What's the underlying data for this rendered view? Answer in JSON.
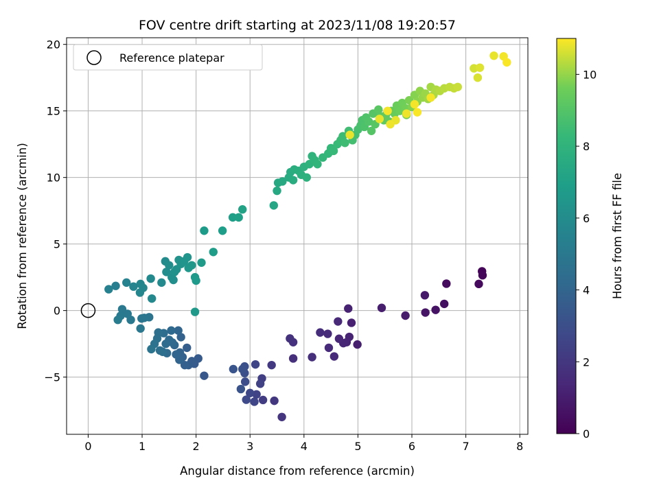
{
  "chart_data": {
    "type": "scatter",
    "title": "FOV centre drift starting at 2023/11/08 19:20:57",
    "xlabel": "Angular distance from reference (arcmin)",
    "ylabel": "Rotation from reference (arcmin)",
    "xlim": [
      -0.4,
      8.15
    ],
    "ylim": [
      -9.3,
      20.5
    ],
    "xticks": [
      "0",
      "1",
      "2",
      "3",
      "4",
      "5",
      "6",
      "7",
      "8"
    ],
    "yticks": [
      "−5",
      "0",
      "5",
      "10",
      "15",
      "20"
    ],
    "grid": true,
    "legend": {
      "position": "top-left",
      "entries": [
        "Reference platepar"
      ]
    },
    "reference_point": {
      "x": 0,
      "y": 0
    },
    "colorbar": {
      "label": "Hours from first FF file",
      "range": [
        0,
        11
      ],
      "colormap": "viridis",
      "ticks": [
        "0",
        "2",
        "4",
        "6",
        "8",
        "10"
      ]
    },
    "points": [
      [
        7.3,
        2.95,
        0.1
      ],
      [
        7.31,
        2.65,
        0.2
      ],
      [
        7.24,
        2.0,
        0.3
      ],
      [
        6.64,
        2.02,
        0.4
      ],
      [
        6.6,
        0.5,
        0.5
      ],
      [
        6.44,
        0.05,
        0.6
      ],
      [
        6.25,
        -0.15,
        0.7
      ],
      [
        6.24,
        1.15,
        0.8
      ],
      [
        5.88,
        -0.38,
        0.9
      ],
      [
        5.44,
        0.2,
        1.0
      ],
      [
        4.99,
        -2.55,
        1.05
      ],
      [
        4.88,
        -0.92,
        1.1
      ],
      [
        4.82,
        0.15,
        1.15
      ],
      [
        4.84,
        -1.98,
        1.2
      ],
      [
        4.79,
        -2.38,
        1.25
      ],
      [
        4.73,
        -2.45,
        1.3
      ],
      [
        4.65,
        -2.12,
        1.35
      ],
      [
        4.63,
        -0.82,
        1.4
      ],
      [
        4.56,
        -3.45,
        1.45
      ],
      [
        4.46,
        -2.8,
        1.5
      ],
      [
        4.44,
        -1.75,
        1.55
      ],
      [
        4.3,
        -1.65,
        1.6
      ],
      [
        4.15,
        -3.5,
        1.65
      ],
      [
        3.8,
        -3.6,
        1.7
      ],
      [
        3.8,
        -2.38,
        1.75
      ],
      [
        3.74,
        -2.1,
        1.8
      ],
      [
        3.59,
        -8.0,
        1.9
      ],
      [
        3.45,
        -6.78,
        2.0
      ],
      [
        3.4,
        -4.1,
        2.1
      ],
      [
        3.24,
        -6.72,
        2.2
      ],
      [
        3.22,
        -5.1,
        2.3
      ],
      [
        3.19,
        -5.5,
        2.4
      ],
      [
        3.12,
        -6.3,
        2.5
      ],
      [
        3.1,
        -4.05,
        2.55
      ],
      [
        3.08,
        -6.85,
        2.6
      ],
      [
        3.0,
        -6.2,
        2.7
      ],
      [
        2.93,
        -6.7,
        2.8
      ],
      [
        2.91,
        -5.35,
        2.9
      ],
      [
        2.9,
        -4.7,
        3.0
      ],
      [
        2.9,
        -4.2,
        3.05
      ],
      [
        2.86,
        -4.4,
        3.1
      ],
      [
        2.83,
        -5.9,
        3.2
      ],
      [
        2.69,
        -4.4,
        3.3
      ],
      [
        2.15,
        -4.9,
        3.4
      ],
      [
        2.04,
        -3.6,
        3.5
      ],
      [
        1.97,
        -4.0,
        3.55
      ],
      [
        1.92,
        -3.8,
        3.6
      ],
      [
        1.86,
        -4.1,
        3.65
      ],
      [
        1.83,
        -2.8,
        3.7
      ],
      [
        1.79,
        -4.1,
        3.75
      ],
      [
        1.75,
        -3.5,
        3.8
      ],
      [
        1.72,
        -2.0,
        3.85
      ],
      [
        1.7,
        -3.15,
        3.9
      ],
      [
        1.69,
        -3.7,
        3.95
      ],
      [
        1.67,
        -1.5,
        4.0
      ],
      [
        1.63,
        -3.3,
        4.05
      ],
      [
        1.6,
        -2.6,
        4.1
      ],
      [
        1.56,
        -2.4,
        4.15
      ],
      [
        1.54,
        -1.5,
        4.2
      ],
      [
        1.5,
        -2.2,
        4.25
      ],
      [
        1.46,
        -3.2,
        4.3
      ],
      [
        1.44,
        -2.5,
        4.35
      ],
      [
        1.4,
        -1.7,
        4.4
      ],
      [
        1.38,
        -3.1,
        4.45
      ],
      [
        1.33,
        -3.0,
        4.5
      ],
      [
        1.3,
        -1.65,
        4.55
      ],
      [
        1.28,
        -2.1,
        4.6
      ],
      [
        1.23,
        -2.5,
        4.65
      ],
      [
        1.17,
        -2.9,
        4.7
      ],
      [
        1.13,
        -0.5,
        4.75
      ],
      [
        1.04,
        -0.55,
        4.8
      ],
      [
        0.99,
        -0.6,
        4.85
      ],
      [
        0.97,
        -1.35,
        4.9
      ],
      [
        0.79,
        -0.7,
        4.95
      ],
      [
        0.73,
        -0.25,
        5.0
      ],
      [
        0.63,
        0.1,
        5.05
      ],
      [
        0.6,
        -0.4,
        5.1
      ],
      [
        0.55,
        -0.7,
        5.15
      ],
      [
        0.51,
        1.85,
        5.3
      ],
      [
        0.38,
        1.6,
        5.4
      ],
      [
        0.71,
        2.1,
        5.5
      ],
      [
        0.84,
        1.8,
        5.6
      ],
      [
        0.97,
        2.0,
        5.65
      ],
      [
        0.96,
        1.35,
        5.7
      ],
      [
        1.02,
        1.7,
        5.75
      ],
      [
        1.18,
        0.9,
        5.8
      ],
      [
        1.16,
        2.4,
        5.85
      ],
      [
        1.36,
        2.1,
        5.9
      ],
      [
        1.43,
        3.7,
        5.95
      ],
      [
        1.45,
        2.9,
        6.0
      ],
      [
        1.5,
        3.4,
        6.05
      ],
      [
        1.55,
        2.5,
        6.1
      ],
      [
        1.58,
        2.3,
        6.15
      ],
      [
        1.6,
        2.9,
        6.2
      ],
      [
        1.64,
        3.1,
        6.25
      ],
      [
        1.68,
        3.8,
        6.3
      ],
      [
        1.72,
        3.5,
        6.35
      ],
      [
        1.78,
        3.7,
        6.4
      ],
      [
        1.84,
        4.0,
        6.45
      ],
      [
        1.86,
        3.2,
        6.5
      ],
      [
        1.92,
        3.4,
        6.55
      ],
      [
        1.98,
        2.5,
        6.6
      ],
      [
        1.98,
        -0.1,
        6.65
      ],
      [
        2.0,
        2.25,
        6.7
      ],
      [
        2.1,
        3.6,
        6.75
      ],
      [
        2.15,
        6.0,
        6.8
      ],
      [
        2.32,
        4.4,
        6.85
      ],
      [
        2.49,
        6.0,
        6.9
      ],
      [
        2.68,
        7.0,
        6.95
      ],
      [
        2.79,
        7.0,
        7.0
      ],
      [
        2.86,
        7.6,
        7.1
      ],
      [
        3.44,
        7.9,
        7.3
      ],
      [
        3.5,
        9.0,
        7.4
      ],
      [
        3.52,
        9.6,
        7.45
      ],
      [
        3.6,
        9.7,
        7.5
      ],
      [
        3.72,
        10.0,
        7.55
      ],
      [
        3.75,
        10.4,
        7.6
      ],
      [
        3.8,
        9.8,
        7.65
      ],
      [
        3.82,
        10.6,
        7.7
      ],
      [
        3.9,
        10.5,
        7.75
      ],
      [
        3.95,
        10.2,
        7.8
      ],
      [
        4.0,
        10.8,
        7.85
      ],
      [
        4.05,
        10.0,
        7.9
      ],
      [
        4.1,
        11.0,
        7.95
      ],
      [
        4.15,
        11.6,
        8.0
      ],
      [
        4.2,
        11.3,
        8.05
      ],
      [
        4.25,
        11.0,
        8.1
      ],
      [
        4.35,
        11.5,
        8.15
      ],
      [
        4.45,
        11.8,
        8.2
      ],
      [
        4.5,
        12.2,
        8.25
      ],
      [
        4.55,
        12.0,
        8.3
      ],
      [
        4.62,
        12.5,
        8.35
      ],
      [
        4.68,
        12.8,
        8.4
      ],
      [
        4.72,
        13.1,
        8.45
      ],
      [
        4.76,
        12.6,
        8.5
      ],
      [
        4.83,
        13.5,
        8.55
      ],
      [
        4.9,
        12.8,
        8.6
      ],
      [
        4.95,
        13.2,
        8.65
      ],
      [
        5.0,
        13.6,
        8.7
      ],
      [
        5.05,
        13.9,
        8.75
      ],
      [
        5.08,
        14.3,
        8.8
      ],
      [
        5.12,
        13.8,
        8.85
      ],
      [
        5.15,
        14.5,
        8.9
      ],
      [
        5.2,
        14.2,
        8.95
      ],
      [
        5.25,
        13.5,
        9.0
      ],
      [
        5.28,
        14.8,
        9.05
      ],
      [
        5.32,
        14.0,
        9.1
      ],
      [
        5.38,
        15.1,
        9.15
      ],
      [
        5.42,
        14.6,
        9.2
      ],
      [
        5.48,
        14.3,
        9.25
      ],
      [
        5.52,
        14.7,
        9.3
      ],
      [
        5.58,
        14.2,
        9.35
      ],
      [
        5.62,
        15.0,
        9.4
      ],
      [
        5.68,
        14.8,
        9.45
      ],
      [
        5.72,
        15.4,
        9.5
      ],
      [
        5.78,
        15.0,
        9.55
      ],
      [
        5.82,
        15.6,
        9.6
      ],
      [
        5.88,
        15.2,
        9.65
      ],
      [
        5.9,
        14.7,
        9.7
      ],
      [
        5.95,
        15.8,
        9.75
      ],
      [
        6.0,
        15.3,
        9.8
      ],
      [
        6.05,
        16.2,
        9.85
      ],
      [
        6.1,
        15.7,
        9.9
      ],
      [
        6.15,
        16.5,
        9.95
      ],
      [
        6.2,
        16.0,
        10.0
      ],
      [
        6.25,
        16.3,
        10.05
      ],
      [
        6.3,
        15.9,
        10.1
      ],
      [
        6.35,
        16.8,
        10.15
      ],
      [
        6.4,
        16.2,
        10.2
      ],
      [
        6.45,
        16.6,
        10.25
      ],
      [
        6.52,
        16.5,
        10.3
      ],
      [
        6.6,
        16.7,
        10.35
      ],
      [
        6.7,
        16.8,
        10.4
      ],
      [
        6.78,
        16.7,
        10.45
      ],
      [
        6.85,
        16.8,
        10.5
      ],
      [
        7.15,
        18.2,
        10.6
      ],
      [
        7.22,
        17.5,
        10.65
      ],
      [
        7.26,
        18.25,
        10.7
      ],
      [
        7.52,
        19.15,
        10.8
      ],
      [
        7.7,
        19.1,
        10.9
      ],
      [
        7.76,
        18.65,
        10.95
      ],
      [
        4.85,
        13.2,
        10.8
      ],
      [
        5.4,
        14.4,
        10.8
      ],
      [
        5.55,
        15.0,
        10.9
      ],
      [
        5.6,
        14.0,
        10.85
      ],
      [
        5.7,
        14.3,
        10.8
      ],
      [
        5.9,
        14.8,
        10.85
      ],
      [
        6.05,
        15.5,
        10.9
      ],
      [
        6.1,
        14.9,
        10.95
      ],
      [
        6.35,
        16.0,
        10.9
      ]
    ]
  }
}
